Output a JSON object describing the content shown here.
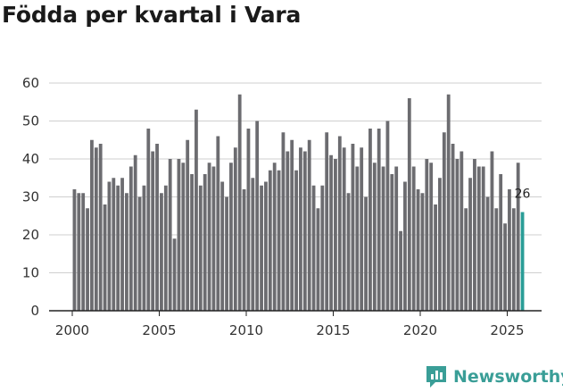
{
  "chart_data": {
    "type": "bar",
    "title": "Födda per kvartal i Vara",
    "xlabel": "",
    "ylabel": "",
    "ylim": [
      0,
      60
    ],
    "yticks": [
      0,
      10,
      20,
      30,
      40,
      50,
      60
    ],
    "xticks": [
      "2000",
      "2005",
      "2010",
      "2015",
      "2020",
      "2025"
    ],
    "categories": [
      "2000Q1",
      "2000Q2",
      "2000Q3",
      "2000Q4",
      "2001Q1",
      "2001Q2",
      "2001Q3",
      "2001Q4",
      "2002Q1",
      "2002Q2",
      "2002Q3",
      "2002Q4",
      "2003Q1",
      "2003Q2",
      "2003Q3",
      "2003Q4",
      "2004Q1",
      "2004Q2",
      "2004Q3",
      "2004Q4",
      "2005Q1",
      "2005Q2",
      "2005Q3",
      "2005Q4",
      "2006Q1",
      "2006Q2",
      "2006Q3",
      "2006Q4",
      "2007Q1",
      "2007Q2",
      "2007Q3",
      "2007Q4",
      "2008Q1",
      "2008Q2",
      "2008Q3",
      "2008Q4",
      "2009Q1",
      "2009Q2",
      "2009Q3",
      "2009Q4",
      "2010Q1",
      "2010Q2",
      "2010Q3",
      "2010Q4",
      "2011Q1",
      "2011Q2",
      "2011Q3",
      "2011Q4",
      "2012Q1",
      "2012Q2",
      "2012Q3",
      "2012Q4",
      "2013Q1",
      "2013Q2",
      "2013Q3",
      "2013Q4",
      "2014Q1",
      "2014Q2",
      "2014Q3",
      "2014Q4",
      "2015Q1",
      "2015Q2",
      "2015Q3",
      "2015Q4",
      "2016Q1",
      "2016Q2",
      "2016Q3",
      "2016Q4",
      "2017Q1",
      "2017Q2",
      "2017Q3",
      "2017Q4",
      "2018Q1",
      "2018Q2",
      "2018Q3",
      "2018Q4",
      "2019Q1",
      "2019Q2",
      "2019Q3",
      "2019Q4",
      "2020Q1",
      "2020Q2",
      "2020Q3",
      "2020Q4",
      "2021Q1",
      "2021Q2",
      "2021Q3",
      "2021Q4",
      "2022Q1",
      "2022Q2",
      "2022Q3",
      "2022Q4",
      "2023Q1",
      "2023Q2",
      "2023Q3",
      "2023Q4",
      "2024Q1",
      "2024Q2",
      "2024Q3",
      "2024Q4",
      "2025Q1",
      "2025Q2",
      "2025Q3",
      "2025Q4"
    ],
    "values": [
      32,
      31,
      31,
      27,
      45,
      43,
      44,
      28,
      34,
      35,
      33,
      35,
      31,
      38,
      41,
      30,
      33,
      48,
      42,
      44,
      31,
      33,
      40,
      19,
      40,
      39,
      45,
      36,
      53,
      33,
      36,
      39,
      38,
      46,
      34,
      30,
      39,
      43,
      57,
      32,
      48,
      35,
      50,
      33,
      34,
      37,
      39,
      37,
      47,
      42,
      45,
      37,
      43,
      42,
      45,
      33,
      27,
      33,
      47,
      41,
      40,
      46,
      43,
      31,
      44,
      38,
      43,
      30,
      48,
      39,
      48,
      38,
      50,
      36,
      38,
      21,
      34,
      56,
      38,
      32,
      31,
      40,
      39,
      28,
      35,
      47,
      57,
      44,
      40,
      42,
      27,
      35,
      40,
      38,
      38,
      30,
      42,
      27,
      36,
      23,
      32,
      27,
      39,
      26
    ],
    "colors": {
      "bar": "#6c6c70",
      "highlight": "#2a9d97",
      "axis": "#222222",
      "grid": "#cfcfcf"
    },
    "highlight_last": true,
    "last_label": "26"
  },
  "brand": {
    "name": "Newsworthy",
    "icon": "newsworthy-logo-icon",
    "color": "#3a9e97"
  }
}
